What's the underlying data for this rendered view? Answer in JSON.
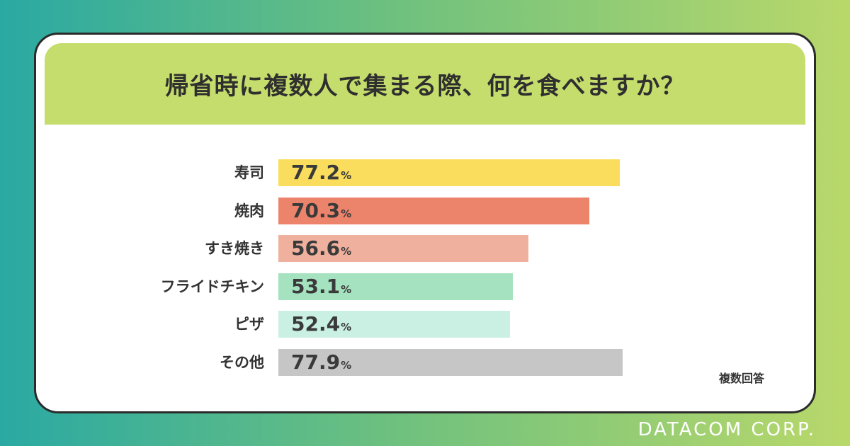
{
  "title": "帰省時に複数人で集まる際、何を食べますか？",
  "note": "複数回答",
  "brand": "DATACOM CORP.",
  "chart_data": {
    "type": "bar",
    "orientation": "horizontal",
    "unit": "%",
    "categories": [
      "寿司",
      "焼肉",
      "すき焼き",
      "フライドチキン",
      "ピザ",
      "その他"
    ],
    "values": [
      77.2,
      70.3,
      56.6,
      53.1,
      52.4,
      77.9
    ],
    "value_labels": [
      "77.2",
      "70.3",
      "56.6",
      "53.1",
      "52.4",
      "77.9"
    ],
    "colors": [
      "#fadd5c",
      "#ec836b",
      "#f0b09e",
      "#a5e2c0",
      "#c9f0e3",
      "#c6c6c6"
    ],
    "xlim": [
      0,
      100
    ]
  }
}
